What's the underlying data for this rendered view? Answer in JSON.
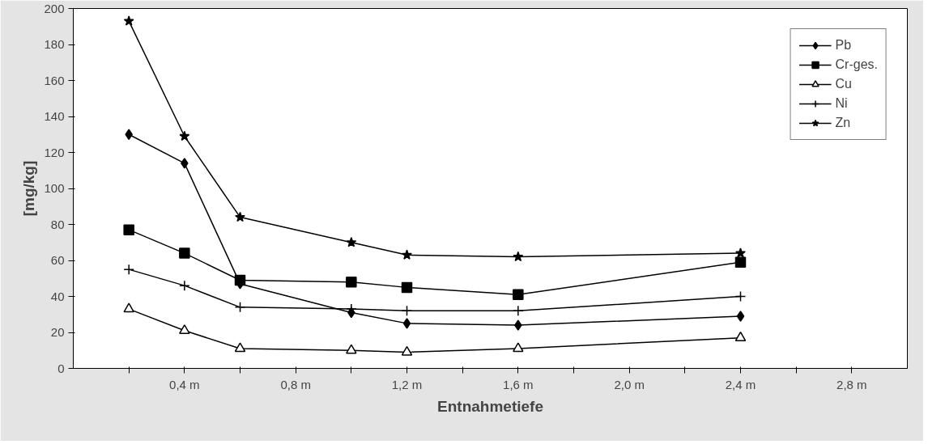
{
  "chart_data": {
    "type": "line",
    "xlabel": "Entnahmetiefe",
    "ylabel": "[mg/kg]",
    "x": [
      0.2,
      0.4,
      0.6,
      1.0,
      1.2,
      1.6,
      2.4
    ],
    "xlim": [
      0,
      3.0
    ],
    "ylim": [
      0,
      200
    ],
    "xticks": [
      {
        "value": 0.2,
        "label": null
      },
      {
        "value": 0.4,
        "label": "0,4 m"
      },
      {
        "value": 0.6,
        "label": null
      },
      {
        "value": 0.8,
        "label": "0,8 m"
      },
      {
        "value": 1.0,
        "label": null
      },
      {
        "value": 1.2,
        "label": "1,2 m"
      },
      {
        "value": 1.4,
        "label": null
      },
      {
        "value": 1.6,
        "label": "1,6 m"
      },
      {
        "value": 1.8,
        "label": null
      },
      {
        "value": 2.0,
        "label": "2,0 m"
      },
      {
        "value": 2.2,
        "label": null
      },
      {
        "value": 2.4,
        "label": "2,4 m"
      },
      {
        "value": 2.6,
        "label": null
      },
      {
        "value": 2.8,
        "label": "2,8 m"
      }
    ],
    "yticks": [
      0,
      20,
      40,
      60,
      80,
      100,
      120,
      140,
      160,
      180,
      200
    ],
    "grid": false,
    "legend": "top right",
    "line_style": "solid",
    "series": [
      {
        "name": "Pb",
        "color": "#000000",
        "marker": "diamond",
        "values": [
          130,
          114,
          47,
          31,
          25,
          24,
          29
        ]
      },
      {
        "name": "Cr-ges.",
        "color": "#000000",
        "marker": "square",
        "values": [
          77,
          64,
          49,
          48,
          45,
          41,
          59
        ]
      },
      {
        "name": "Cu",
        "color": "#000000",
        "marker": "triangle",
        "values": [
          33,
          21,
          11,
          10,
          9,
          11,
          17
        ]
      },
      {
        "name": "Ni",
        "color": "#000000",
        "marker": "cross",
        "values": [
          55,
          46,
          34,
          33,
          32,
          32,
          40
        ]
      },
      {
        "name": "Zn",
        "color": "#000000",
        "marker": "star",
        "values": [
          193,
          129,
          84,
          70,
          63,
          62,
          64
        ]
      }
    ]
  }
}
